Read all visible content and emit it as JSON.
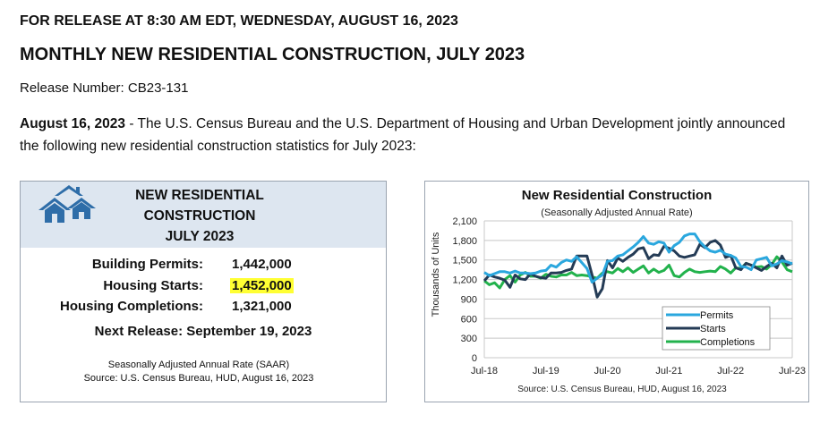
{
  "release_line": "FOR RELEASE AT 8:30 AM EDT, WEDNESDAY, AUGUST 16, 2023",
  "title": "MONTHLY NEW RESIDENTIAL CONSTRUCTION, JULY 2023",
  "release_number": "Release Number: CB23-131",
  "intro": {
    "date_bold": "August 16, 2023",
    "text": " - The U.S. Census Bureau and the U.S. Department of Housing and Urban Development jointly announced the following new residential construction statistics for July 2023:"
  },
  "summary": {
    "title_line1": "NEW RESIDENTIAL",
    "title_line2": "CONSTRUCTION",
    "title_line3": "JULY 2023",
    "stats": [
      {
        "label": "Building Permits:",
        "value": "1,442,000"
      },
      {
        "label": "Housing Starts:",
        "value": "1,452,000"
      },
      {
        "label": "Housing Completions:",
        "value": "1,321,000"
      }
    ],
    "next_release": "Next Release: September 19, 2023",
    "saar_note": "Seasonally Adjusted Annual Rate (SAAR)",
    "source": "Source: U.S. Census Bureau, HUD, August 16, 2023"
  },
  "colors": {
    "permits": "#2aa7de",
    "starts": "#243b55",
    "completions": "#22b24c",
    "highlight": "#ffff33",
    "header_bg": "#dde6f0",
    "logo": "#2e6da8"
  },
  "chart_data": {
    "type": "line",
    "title": "New Residential Construction",
    "subtitle": "(Seasonally Adjusted Annual Rate)",
    "xlabel": "",
    "ylabel": "Thousands of Units",
    "ylim": [
      0,
      2100
    ],
    "yticks": [
      "0",
      "300",
      "600",
      "900",
      "1,200",
      "1,500",
      "1,800",
      "2,100"
    ],
    "ytick_values": [
      0,
      300,
      600,
      900,
      1200,
      1500,
      1800,
      2100
    ],
    "xticks": [
      "Jul-18",
      "Jul-19",
      "Jul-20",
      "Jul-21",
      "Jul-22",
      "Jul-23"
    ],
    "xtick_months": [
      0,
      12,
      24,
      36,
      48,
      60
    ],
    "x_count": 61,
    "grid": true,
    "legend_position": "bottom-right",
    "source": "Source: U.S. Census Bureau, HUD, August 16, 2023",
    "series": [
      {
        "name": "Permits",
        "color": "#2aa7de",
        "values": [
          1310,
          1260,
          1290,
          1320,
          1320,
          1300,
          1330,
          1300,
          1300,
          1290,
          1300,
          1330,
          1340,
          1420,
          1390,
          1460,
          1500,
          1480,
          1550,
          1460,
          1370,
          1160,
          1220,
          1270,
          1480,
          1490,
          1560,
          1580,
          1640,
          1700,
          1770,
          1860,
          1760,
          1740,
          1780,
          1760,
          1620,
          1720,
          1770,
          1870,
          1900,
          1900,
          1780,
          1700,
          1640,
          1620,
          1650,
          1590,
          1570,
          1530,
          1400,
          1390,
          1350,
          1500,
          1520,
          1540,
          1410,
          1440,
          1490,
          1470,
          1442
        ]
      },
      {
        "name": "Starts",
        "color": "#243b55",
        "values": [
          1180,
          1270,
          1240,
          1220,
          1190,
          1080,
          1270,
          1210,
          1200,
          1290,
          1250,
          1230,
          1220,
          1300,
          1300,
          1310,
          1340,
          1360,
          1560,
          1560,
          1560,
          1270,
          930,
          1060,
          1490,
          1380,
          1530,
          1480,
          1540,
          1590,
          1670,
          1690,
          1520,
          1580,
          1570,
          1710,
          1680,
          1640,
          1560,
          1540,
          1560,
          1580,
          1740,
          1690,
          1770,
          1800,
          1730,
          1540,
          1570,
          1380,
          1350,
          1450,
          1420,
          1380,
          1340,
          1400,
          1450,
          1380,
          1560,
          1420,
          1452
        ]
      },
      {
        "name": "Completions",
        "color": "#22b24c",
        "values": [
          1180,
          1120,
          1150,
          1070,
          1200,
          1260,
          1160,
          1270,
          1310,
          1250,
          1250,
          1220,
          1280,
          1250,
          1240,
          1270,
          1270,
          1310,
          1260,
          1270,
          1260,
          1240,
          1220,
          1300,
          1320,
          1300,
          1370,
          1320,
          1380,
          1310,
          1360,
          1410,
          1300,
          1360,
          1310,
          1340,
          1420,
          1260,
          1240,
          1310,
          1360,
          1320,
          1310,
          1320,
          1330,
          1320,
          1400,
          1360,
          1300,
          1380,
          1370,
          1450,
          1420,
          1390,
          1400,
          1360,
          1430,
          1550,
          1470,
          1350,
          1321
        ]
      }
    ]
  }
}
